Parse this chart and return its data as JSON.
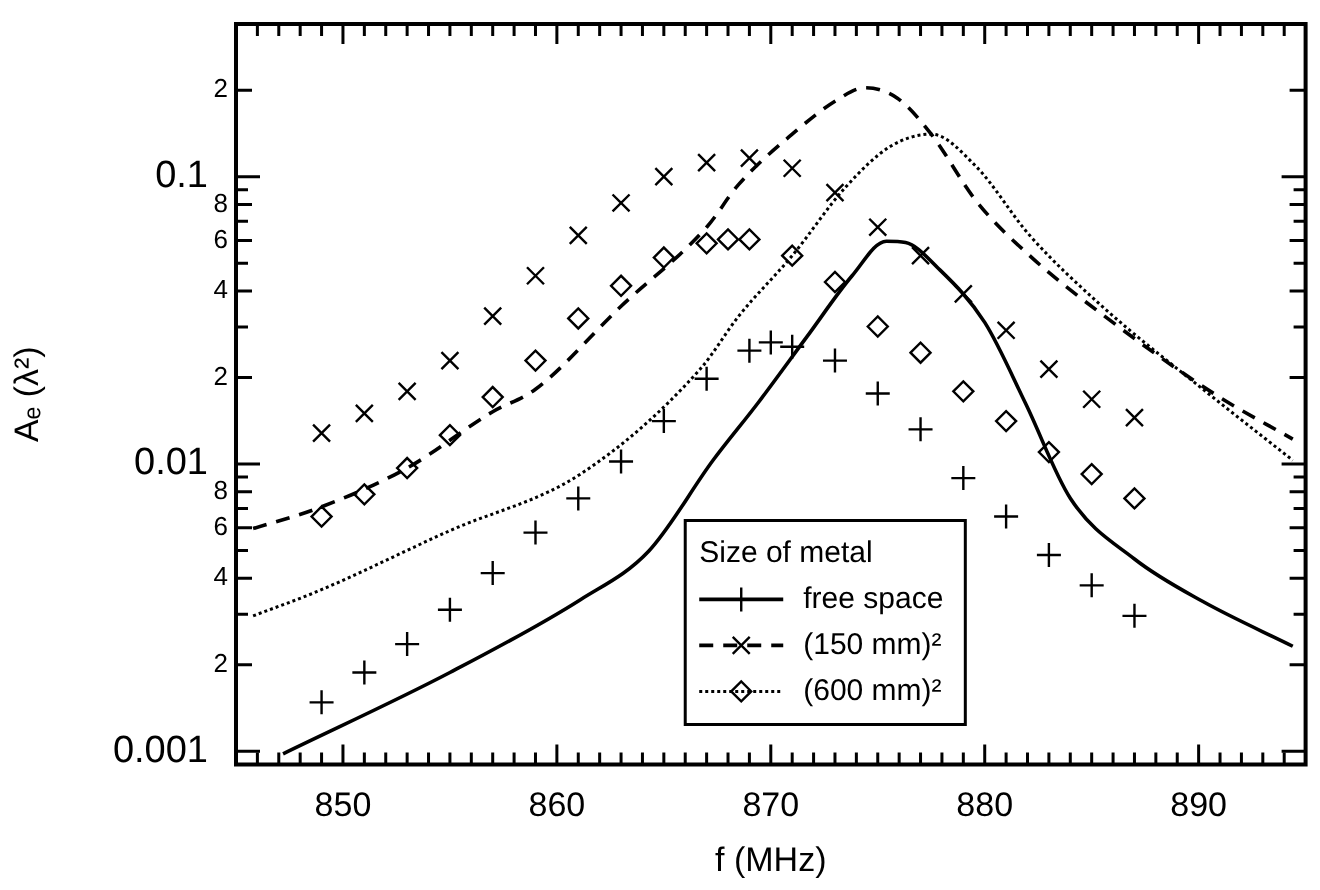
{
  "chart_data": {
    "type": "line",
    "xlabel": "f (MHz)",
    "ylabel": "Aₑ (λ²)",
    "legend_title": "Size of metal",
    "legend": "bottom",
    "log": "y",
    "xlim": [
      845,
      895
    ],
    "ylim": [
      0.0009,
      0.34
    ],
    "xticks": [
      {
        "value": 846,
        "label": null
      },
      {
        "value": 847,
        "label": null
      },
      {
        "value": 848,
        "label": null
      },
      {
        "value": 849,
        "label": null
      },
      850,
      {
        "value": 851,
        "label": null
      },
      {
        "value": 852,
        "label": null
      },
      {
        "value": 853,
        "label": null
      },
      {
        "value": 854,
        "label": null
      },
      {
        "value": 855,
        "label": null
      },
      {
        "value": 856,
        "label": null
      },
      {
        "value": 857,
        "label": null
      },
      {
        "value": 858,
        "label": null
      },
      {
        "value": 859,
        "label": null
      },
      860,
      {
        "value": 861,
        "label": null
      },
      {
        "value": 862,
        "label": null
      },
      {
        "value": 863,
        "label": null
      },
      {
        "value": 864,
        "label": null
      },
      {
        "value": 865,
        "label": null
      },
      {
        "value": 866,
        "label": null
      },
      {
        "value": 867,
        "label": null
      },
      {
        "value": 868,
        "label": null
      },
      {
        "value": 869,
        "label": null
      },
      870,
      {
        "value": 871,
        "label": null
      },
      {
        "value": 872,
        "label": null
      },
      {
        "value": 873,
        "label": null
      },
      {
        "value": 874,
        "label": null
      },
      {
        "value": 875,
        "label": null
      },
      {
        "value": 876,
        "label": null
      },
      {
        "value": 877,
        "label": null
      },
      {
        "value": 878,
        "label": null
      },
      {
        "value": 879,
        "label": null
      },
      880,
      {
        "value": 881,
        "label": null
      },
      {
        "value": 882,
        "label": null
      },
      {
        "value": 883,
        "label": null
      },
      {
        "value": 884,
        "label": null
      },
      {
        "value": 885,
        "label": null
      },
      {
        "value": 886,
        "label": null
      },
      {
        "value": 887,
        "label": null
      },
      {
        "value": 888,
        "label": null
      },
      {
        "value": 889,
        "label": null
      },
      890,
      {
        "value": 891,
        "label": null
      },
      {
        "value": 892,
        "label": null
      },
      {
        "value": 893,
        "label": null
      },
      {
        "value": 894,
        "label": null
      }
    ],
    "yticks": [
      0.001,
      {
        "value": 0.002,
        "label": null
      },
      {
        "value": 0.003,
        "label": null
      },
      {
        "value": 0.004,
        "label": null
      },
      {
        "value": 0.005,
        "label": null
      },
      {
        "value": 0.006,
        "label": null
      },
      {
        "value": 0.007,
        "label": null
      },
      {
        "value": 0.008,
        "label": null
      },
      {
        "value": 0.009,
        "label": null
      },
      0.01,
      {
        "value": 0.02,
        "label": null
      },
      {
        "value": 0.03,
        "label": null
      },
      {
        "value": 0.04,
        "label": null
      },
      {
        "value": 0.05,
        "label": null
      },
      {
        "value": 0.06,
        "label": null
      },
      {
        "value": 0.07,
        "label": null
      },
      {
        "value": 0.08,
        "label": null
      },
      {
        "value": 0.09,
        "label": null
      },
      0.1,
      {
        "value": 0.2,
        "label": null
      }
    ],
    "annotations": [
      "2",
      "4",
      "6",
      "8",
      "2",
      "4",
      "6",
      "8",
      "2"
    ],
    "series": [
      {
        "name": "free space",
        "color": "#000000",
        "line_style": "solid",
        "x": [
          847.2,
          855,
          861.1,
          864.3,
          867.3,
          869.4,
          871.7,
          873.8,
          875.4,
          876.3,
          877.8,
          880,
          881.9,
          884,
          887,
          890.2,
          894.4
        ],
        "values": [
          0.00098,
          0.00188,
          0.00337,
          0.00498,
          0.0103,
          0.0163,
          0.0278,
          0.0452,
          0.0596,
          0.059,
          0.0482,
          0.0311,
          0.0163,
          0.0076,
          0.00467,
          0.00332,
          0.00232
        ]
      },
      {
        "type": "scatter",
        "color": "#000000",
        "marker": "plus",
        "x": [
          849,
          851,
          853,
          855,
          857,
          859,
          861,
          863,
          865,
          867,
          869,
          870,
          871,
          873,
          875,
          877,
          879,
          881,
          883,
          885,
          887
        ],
        "values": [
          0.00148,
          0.00188,
          0.00236,
          0.00311,
          0.00417,
          0.00577,
          0.00759,
          0.0102,
          0.0141,
          0.0198,
          0.0248,
          0.0265,
          0.0256,
          0.0229,
          0.0176,
          0.0132,
          0.00893,
          0.00656,
          0.00482,
          0.00378,
          0.00296
        ]
      },
      {
        "name": "(150 mm)²",
        "color": "#000000",
        "line_style": "dashed",
        "x": [
          845.8,
          848.8,
          853,
          857,
          859,
          863,
          867,
          868.5,
          871,
          873.1,
          874.4,
          875.9,
          877.5,
          879.6,
          882.1,
          885.6,
          890.7,
          894.4
        ],
        "values": [
          0.00596,
          0.007,
          0.00968,
          0.0152,
          0.0182,
          0.0354,
          0.0667,
          0.094,
          0.1406,
          0.185,
          0.204,
          0.188,
          0.1406,
          0.0823,
          0.0531,
          0.0327,
          0.0176,
          0.0122
        ]
      },
      {
        "type": "scatter",
        "color": "#000000",
        "marker": "cross",
        "x": [
          849,
          851,
          853,
          855,
          857,
          859,
          861,
          863,
          865,
          867,
          869,
          871,
          873,
          875,
          877,
          879,
          881,
          883,
          885,
          887
        ],
        "values": [
          0.0128,
          0.015,
          0.0179,
          0.0229,
          0.0327,
          0.0452,
          0.0625,
          0.081,
          0.1,
          0.112,
          0.116,
          0.107,
          0.088,
          0.0667,
          0.0531,
          0.0391,
          0.0292,
          0.0214,
          0.0168,
          0.0145
        ]
      },
      {
        "name": "(600 mm)²",
        "color": "#000000",
        "line_style": "dotted",
        "x": [
          845.8,
          848.8,
          855,
          861.1,
          866.7,
          868.5,
          871,
          873.5,
          875.6,
          877.5,
          879.6,
          882.1,
          885.6,
          890.2,
          894.4
        ],
        "values": [
          0.00296,
          0.0036,
          0.00586,
          0.00922,
          0.0214,
          0.0327,
          0.0531,
          0.092,
          0.1276,
          0.1406,
          0.1084,
          0.0625,
          0.0348,
          0.0182,
          0.0103
        ]
      },
      {
        "type": "scatter",
        "color": "#000000",
        "marker": "diamond",
        "x": [
          849,
          851,
          853,
          855,
          857,
          859,
          861,
          863,
          865,
          867,
          868,
          869,
          871,
          873,
          875,
          877,
          879,
          881,
          883,
          885,
          887
        ],
        "values": [
          0.00656,
          0.00784,
          0.00968,
          0.0126,
          0.0171,
          0.0229,
          0.0321,
          0.0417,
          0.0523,
          0.0586,
          0.0605,
          0.0605,
          0.0531,
          0.043,
          0.0301,
          0.0244,
          0.0179,
          0.0141,
          0.011,
          0.00922,
          0.00759
        ]
      }
    ]
  }
}
